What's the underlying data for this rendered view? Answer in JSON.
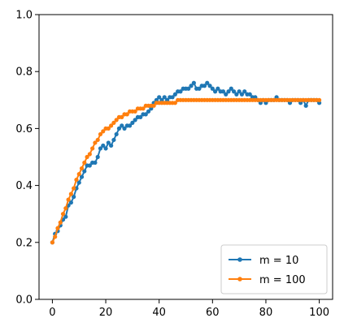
{
  "chart_data": {
    "type": "line",
    "title": "",
    "xlabel": "",
    "ylabel": "",
    "xlim": [
      -5,
      105
    ],
    "ylim": [
      0,
      1.0
    ],
    "xticks": [
      0,
      20,
      40,
      60,
      80,
      100
    ],
    "xtick_labels": [
      "0",
      "20",
      "40",
      "60",
      "80",
      "100"
    ],
    "yticks": [
      0.0,
      0.2,
      0.4,
      0.6,
      0.8,
      1.0
    ],
    "ytick_labels": [
      "0.0",
      "0.2",
      "0.4",
      "0.6",
      "0.8",
      "1.0"
    ],
    "grid": false,
    "legend_position": "lower-right",
    "series": [
      {
        "name": "m = 10",
        "color": "#1f77b4",
        "x": [
          0,
          1,
          2,
          3,
          4,
          5,
          6,
          7,
          8,
          9,
          10,
          11,
          12,
          13,
          14,
          15,
          16,
          17,
          18,
          19,
          20,
          21,
          22,
          23,
          24,
          25,
          26,
          27,
          28,
          29,
          30,
          31,
          32,
          33,
          34,
          35,
          36,
          37,
          38,
          39,
          40,
          41,
          42,
          43,
          44,
          45,
          46,
          47,
          48,
          49,
          50,
          51,
          52,
          53,
          54,
          55,
          56,
          57,
          58,
          59,
          60,
          61,
          62,
          63,
          64,
          65,
          66,
          67,
          68,
          69,
          70,
          71,
          72,
          73,
          74,
          75,
          76,
          77,
          78,
          79,
          80,
          81,
          82,
          83,
          84,
          85,
          86,
          87,
          88,
          89,
          90,
          91,
          92,
          93,
          94,
          95,
          96,
          97,
          98,
          99,
          100
        ],
        "y": [
          0.2,
          0.23,
          0.24,
          0.26,
          0.28,
          0.29,
          0.33,
          0.34,
          0.36,
          0.39,
          0.41,
          0.43,
          0.45,
          0.47,
          0.47,
          0.48,
          0.48,
          0.5,
          0.53,
          0.54,
          0.53,
          0.55,
          0.54,
          0.56,
          0.58,
          0.6,
          0.61,
          0.6,
          0.61,
          0.61,
          0.62,
          0.63,
          0.64,
          0.64,
          0.65,
          0.65,
          0.66,
          0.67,
          0.69,
          0.7,
          0.71,
          0.7,
          0.71,
          0.7,
          0.71,
          0.71,
          0.72,
          0.73,
          0.73,
          0.74,
          0.74,
          0.74,
          0.75,
          0.76,
          0.74,
          0.74,
          0.75,
          0.75,
          0.76,
          0.75,
          0.74,
          0.73,
          0.74,
          0.73,
          0.73,
          0.72,
          0.73,
          0.74,
          0.73,
          0.72,
          0.73,
          0.72,
          0.73,
          0.72,
          0.72,
          0.71,
          0.71,
          0.7,
          0.69,
          0.7,
          0.69,
          0.7,
          0.7,
          0.7,
          0.71,
          0.7,
          0.7,
          0.7,
          0.7,
          0.69,
          0.7,
          0.7,
          0.7,
          0.69,
          0.7,
          0.68,
          0.7,
          0.7,
          0.7,
          0.7,
          0.69
        ]
      },
      {
        "name": "m = 100",
        "color": "#ff7f0e",
        "x": [
          0,
          1,
          2,
          3,
          4,
          5,
          6,
          7,
          8,
          9,
          10,
          11,
          12,
          13,
          14,
          15,
          16,
          17,
          18,
          19,
          20,
          21,
          22,
          23,
          24,
          25,
          26,
          27,
          28,
          29,
          30,
          31,
          32,
          33,
          34,
          35,
          36,
          37,
          38,
          39,
          40,
          41,
          42,
          43,
          44,
          45,
          46,
          47,
          48,
          49,
          50,
          51,
          52,
          53,
          54,
          55,
          56,
          57,
          58,
          59,
          60,
          61,
          62,
          63,
          64,
          65,
          66,
          67,
          68,
          69,
          70,
          71,
          72,
          73,
          74,
          75,
          76,
          77,
          78,
          79,
          80,
          81,
          82,
          83,
          84,
          85,
          86,
          87,
          88,
          89,
          90,
          91,
          92,
          93,
          94,
          95,
          96,
          97,
          98,
          99,
          100
        ],
        "y": [
          0.2,
          0.22,
          0.25,
          0.27,
          0.3,
          0.32,
          0.35,
          0.37,
          0.39,
          0.42,
          0.44,
          0.46,
          0.48,
          0.5,
          0.51,
          0.53,
          0.55,
          0.56,
          0.58,
          0.59,
          0.6,
          0.6,
          0.61,
          0.62,
          0.63,
          0.64,
          0.64,
          0.65,
          0.65,
          0.66,
          0.66,
          0.66,
          0.67,
          0.67,
          0.67,
          0.68,
          0.68,
          0.68,
          0.68,
          0.69,
          0.69,
          0.69,
          0.69,
          0.69,
          0.69,
          0.69,
          0.69,
          0.7,
          0.7,
          0.7,
          0.7,
          0.7,
          0.7,
          0.7,
          0.7,
          0.7,
          0.7,
          0.7,
          0.7,
          0.7,
          0.7,
          0.7,
          0.7,
          0.7,
          0.7,
          0.7,
          0.7,
          0.7,
          0.7,
          0.7,
          0.7,
          0.7,
          0.7,
          0.7,
          0.7,
          0.7,
          0.7,
          0.7,
          0.7,
          0.7,
          0.7,
          0.7,
          0.7,
          0.7,
          0.7,
          0.7,
          0.7,
          0.7,
          0.7,
          0.7,
          0.7,
          0.7,
          0.7,
          0.7,
          0.7,
          0.7,
          0.7,
          0.7,
          0.7,
          0.7,
          0.7
        ]
      }
    ]
  }
}
